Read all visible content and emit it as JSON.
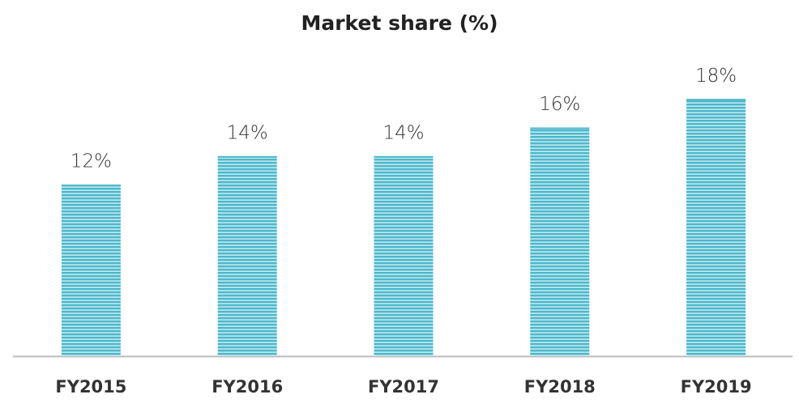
{
  "chart_data": {
    "type": "bar",
    "title": "Market share (%)",
    "categories": [
      "FY2015",
      "FY2016",
      "FY2017",
      "FY2018",
      "FY2019"
    ],
    "values": [
      12,
      14,
      14,
      16,
      18
    ],
    "value_labels": [
      "12%",
      "14%",
      "14%",
      "16%",
      "18%"
    ],
    "color": "#4db8cc",
    "ylim": [
      0,
      20
    ]
  }
}
